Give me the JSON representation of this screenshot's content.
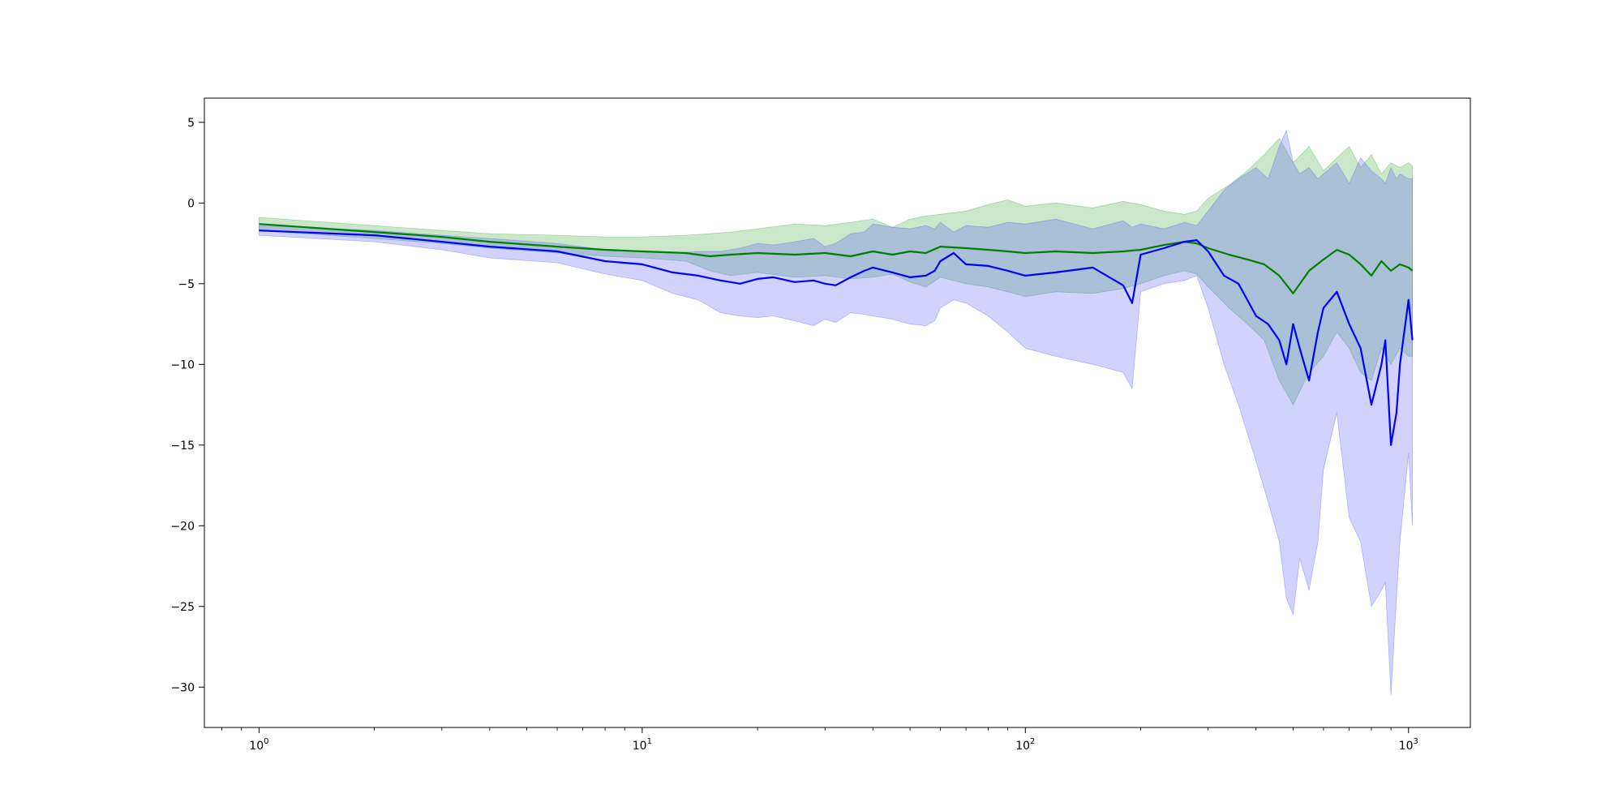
{
  "chart_data": {
    "type": "line",
    "title": "",
    "xlabel": "",
    "ylabel": "",
    "xscale": "log",
    "xlim": [
      0.72,
      1450
    ],
    "ylim": [
      -32.5,
      6.5
    ],
    "grid": false,
    "x_tick_labels": [
      {
        "base": "10",
        "exp": "0",
        "value": 1
      },
      {
        "base": "10",
        "exp": "1",
        "value": 10
      },
      {
        "base": "10",
        "exp": "2",
        "value": 100
      },
      {
        "base": "10",
        "exp": "3",
        "value": 1000
      }
    ],
    "y_ticks": [
      5,
      0,
      -5,
      -10,
      -15,
      -20,
      -25,
      -30
    ],
    "y_tick_labels": [
      "5",
      "0",
      "−5",
      "−10",
      "−15",
      "−20",
      "−25",
      "−30"
    ],
    "series": [
      {
        "color": "#008000",
        "band_color": "#2ca02c",
        "x": [
          1,
          2,
          3,
          4,
          6,
          8,
          10,
          13,
          15,
          17,
          20,
          25,
          30,
          35,
          40,
          45,
          50,
          55,
          60,
          70,
          80,
          90,
          100,
          120,
          150,
          180,
          200,
          230,
          260,
          280,
          300,
          340,
          380,
          420,
          460,
          500,
          550,
          600,
          650,
          700,
          750,
          800,
          850,
          900,
          950,
          1000,
          1024
        ],
        "values": [
          -1.3,
          -1.8,
          -2.1,
          -2.4,
          -2.7,
          -2.9,
          -3.0,
          -3.1,
          -3.3,
          -3.2,
          -3.1,
          -3.2,
          -3.1,
          -3.3,
          -3.0,
          -3.2,
          -3.0,
          -3.1,
          -2.7,
          -2.8,
          -2.9,
          -3.0,
          -3.1,
          -3.0,
          -3.1,
          -3.0,
          -2.9,
          -2.6,
          -2.4,
          -2.5,
          -2.8,
          -3.2,
          -3.5,
          -3.8,
          -4.5,
          -5.6,
          -4.2,
          -3.5,
          -2.9,
          -3.2,
          -3.8,
          -4.5,
          -3.6,
          -4.2,
          -3.8,
          -4.0,
          -4.2
        ],
        "upper": [
          -0.9,
          -1.4,
          -1.7,
          -1.9,
          -2.0,
          -2.1,
          -2.1,
          -2.0,
          -1.9,
          -1.8,
          -1.6,
          -1.3,
          -1.4,
          -1.2,
          -1.0,
          -1.5,
          -1.0,
          -0.8,
          -0.7,
          -0.5,
          -0.1,
          0.2,
          -0.2,
          0.0,
          -0.3,
          0.1,
          -0.1,
          -0.5,
          -0.7,
          -0.5,
          0.3,
          1.1,
          2.0,
          3.0,
          4.0,
          2.5,
          3.5,
          2.0,
          2.8,
          3.5,
          2.2,
          3.0,
          1.8,
          2.5,
          2.2,
          2.5,
          2.3
        ],
        "lower": [
          -1.7,
          -2.2,
          -2.5,
          -2.8,
          -3.1,
          -3.3,
          -3.4,
          -3.6,
          -4.2,
          -4.5,
          -4.3,
          -4.6,
          -4.5,
          -4.7,
          -4.6,
          -4.4,
          -4.9,
          -5.2,
          -4.6,
          -5.0,
          -5.2,
          -5.5,
          -5.8,
          -5.5,
          -5.6,
          -5.3,
          -5.0,
          -4.5,
          -4.2,
          -4.4,
          -5.2,
          -6.5,
          -7.5,
          -8.5,
          -11.0,
          -12.5,
          -10.5,
          -9.5,
          -8.0,
          -9.0,
          -10.5,
          -11.0,
          -9.0,
          -10.0,
          -9.0,
          -9.5,
          -9.5
        ]
      },
      {
        "color": "#0000ff",
        "band_color": "#4a4aff",
        "x": [
          1,
          2,
          3,
          4,
          6,
          8,
          10,
          12,
          14,
          16,
          18,
          20,
          22,
          25,
          28,
          30,
          32,
          35,
          38,
          40,
          45,
          50,
          55,
          58,
          60,
          65,
          70,
          80,
          90,
          100,
          120,
          150,
          180,
          190,
          200,
          230,
          260,
          280,
          300,
          330,
          360,
          400,
          430,
          460,
          480,
          500,
          520,
          550,
          580,
          600,
          650,
          700,
          750,
          800,
          850,
          870,
          900,
          930,
          950,
          1000,
          1024
        ],
        "values": [
          -1.7,
          -2.0,
          -2.4,
          -2.7,
          -3.0,
          -3.6,
          -3.8,
          -4.3,
          -4.5,
          -4.8,
          -5.0,
          -4.7,
          -4.6,
          -4.9,
          -4.8,
          -5.0,
          -5.1,
          -4.6,
          -4.2,
          -4.0,
          -4.3,
          -4.6,
          -4.5,
          -4.2,
          -3.6,
          -3.1,
          -3.8,
          -3.9,
          -4.2,
          -4.5,
          -4.3,
          -4.0,
          -5.1,
          -6.2,
          -3.2,
          -2.8,
          -2.4,
          -2.3,
          -3.0,
          -4.5,
          -5.0,
          -7.0,
          -7.5,
          -8.5,
          -10.0,
          -7.5,
          -9.0,
          -11.0,
          -8.0,
          -6.5,
          -5.5,
          -7.5,
          -9.0,
          -12.5,
          -10.0,
          -8.5,
          -15.0,
          -13.0,
          -10.0,
          -6.0,
          -8.5
        ],
        "upper": [
          -1.4,
          -1.7,
          -2.0,
          -2.2,
          -2.5,
          -2.9,
          -3.0,
          -3.1,
          -3.0,
          -3.0,
          -2.8,
          -2.5,
          -2.6,
          -2.4,
          -2.2,
          -2.7,
          -2.5,
          -1.9,
          -1.8,
          -1.3,
          -1.5,
          -1.6,
          -1.4,
          -1.6,
          -1.2,
          -1.8,
          -1.4,
          -1.5,
          -1.2,
          -1.3,
          -1.0,
          -1.6,
          -1.1,
          -1.5,
          -1.3,
          -1.6,
          -1.2,
          -1.4,
          -0.5,
          0.8,
          1.5,
          2.2,
          1.5,
          3.5,
          4.5,
          2.5,
          1.8,
          2.2,
          1.5,
          1.8,
          2.5,
          1.2,
          2.8,
          2.0,
          1.5,
          1.2,
          2.2,
          1.5,
          1.8,
          1.5,
          1.5
        ],
        "lower": [
          -2.0,
          -2.4,
          -2.9,
          -3.4,
          -3.7,
          -4.4,
          -4.8,
          -5.6,
          -6.0,
          -6.8,
          -7.0,
          -7.1,
          -7.0,
          -7.3,
          -7.6,
          -7.2,
          -7.4,
          -6.8,
          -6.9,
          -7.0,
          -7.2,
          -7.5,
          -7.6,
          -7.3,
          -6.5,
          -6.0,
          -6.2,
          -7.0,
          -8.0,
          -9.0,
          -9.5,
          -10.0,
          -10.5,
          -11.5,
          -5.5,
          -5.0,
          -4.8,
          -4.5,
          -6.5,
          -10.0,
          -12.5,
          -16.0,
          -18.5,
          -21.0,
          -24.5,
          -25.5,
          -22.0,
          -24.0,
          -21.0,
          -16.5,
          -13.0,
          -19.5,
          -21.0,
          -25.0,
          -24.0,
          -23.5,
          -30.5,
          -24.5,
          -21.0,
          -15.5,
          -20.0
        ]
      }
    ]
  }
}
